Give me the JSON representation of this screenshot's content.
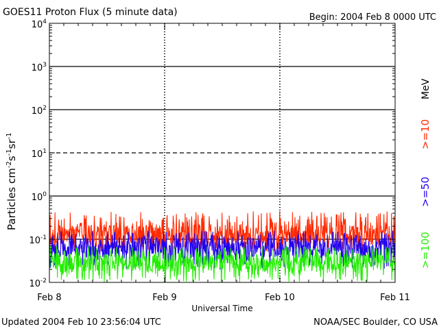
{
  "chart_data": {
    "type": "line",
    "title": "GOES11 Proton Flux (5 minute data)",
    "begin_label": "Begin: 2004 Feb 8 0000 UTC",
    "xlabel": "Universal Time",
    "ylabel_parts": {
      "base": "Particles cm",
      "exp1": "-2",
      "mid1": "s",
      "exp2": "-1",
      "mid2": "sr",
      "exp3": "-1"
    },
    "x_ticks": [
      "Feb 8",
      "Feb 9",
      "Feb 10",
      "Feb 11"
    ],
    "x_range_days": [
      0,
      3
    ],
    "y_scale": "log",
    "y_ticks": [
      {
        "base": "10",
        "exp": "-2"
      },
      {
        "base": "10",
        "exp": "-1"
      },
      {
        "base": "10",
        "exp": "0"
      },
      {
        "base": "10",
        "exp": "1"
      },
      {
        "base": "10",
        "exp": "2"
      },
      {
        "base": "10",
        "exp": "3"
      },
      {
        "base": "10",
        "exp": "4"
      }
    ],
    "y_range_log10": [
      -2,
      4
    ],
    "threshold_lines": [
      {
        "log10": -1,
        "style": "solid",
        "color": "#000000"
      },
      {
        "log10": 0,
        "style": "solid",
        "color": "#000000"
      },
      {
        "log10": 1,
        "style": "dashed",
        "color": "#000000"
      },
      {
        "log10": 2,
        "style": "solid",
        "color": "#000000"
      },
      {
        "log10": 3,
        "style": "solid",
        "color": "#000000"
      }
    ],
    "series": [
      {
        "name": ">=10",
        "unit": "MeV",
        "color": "#ff2a00",
        "log10_min": -1.3,
        "log10_max": -0.35,
        "log10_mean": -0.9
      },
      {
        "name": ">=50",
        "color": "#2200ee",
        "log10_min": -1.7,
        "log10_max": -0.8,
        "log10_mean": -1.2
      },
      {
        "name": ">=100",
        "color": "#22ee00",
        "log10_min": -2.0,
        "log10_max": -1.15,
        "log10_mean": -1.55
      }
    ],
    "unit_label": "MeV",
    "footer_left": "Updated 2004 Feb 10 23:56:04 UTC",
    "footer_right": "NOAA/SEC Boulder, CO USA"
  }
}
